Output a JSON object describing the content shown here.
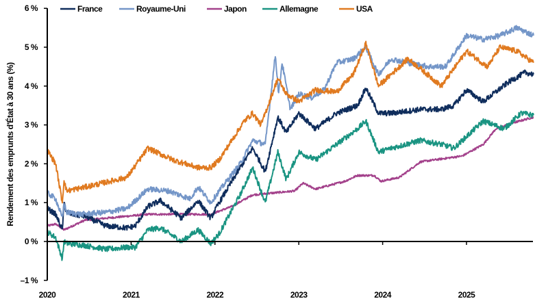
{
  "chart_data": {
    "type": "line",
    "title": "",
    "xlabel": "",
    "ylabel": "Rendement des emprunts d'État à 30 ans (%)",
    "ylim": [
      -1,
      6
    ],
    "xlim": [
      2020.0,
      2025.8
    ],
    "grid": false,
    "legend_position": "top",
    "y_ticks": [
      -1,
      0,
      1,
      2,
      3,
      4,
      5,
      6
    ],
    "y_tick_labels": [
      "–1 %",
      "0 %",
      "1 %",
      "2 %",
      "3 %",
      "4 %",
      "5 %",
      "6 %"
    ],
    "x_ticks": [
      2020,
      2021,
      2022,
      2023,
      2024,
      2025
    ],
    "x_tick_labels": [
      "2020",
      "2021",
      "2022",
      "2023",
      "2024",
      "2025"
    ],
    "series": [
      {
        "name": "France",
        "color": "#0f2d5c",
        "x": [
          2020.0,
          2020.1,
          2020.18,
          2020.2,
          2020.23,
          2020.3,
          2020.45,
          2020.7,
          2020.95,
          2021.05,
          2021.2,
          2021.35,
          2021.6,
          2021.8,
          2021.95,
          2022.05,
          2022.3,
          2022.45,
          2022.6,
          2022.75,
          2022.85,
          2023.0,
          2023.2,
          2023.45,
          2023.7,
          2023.8,
          2023.95,
          2024.1,
          2024.45,
          2024.7,
          2024.85,
          2025.0,
          2025.2,
          2025.5,
          2025.7,
          2025.8
        ],
        "values": [
          0.85,
          0.7,
          0.3,
          1.0,
          0.75,
          0.7,
          0.65,
          0.4,
          0.35,
          0.4,
          0.9,
          1.05,
          0.6,
          1.05,
          0.6,
          1.0,
          1.9,
          2.4,
          1.8,
          3.2,
          2.8,
          3.3,
          2.9,
          3.3,
          3.5,
          3.95,
          3.3,
          3.3,
          3.4,
          3.4,
          3.5,
          3.9,
          3.6,
          4.1,
          4.35,
          4.3
        ]
      },
      {
        "name": "Royaume-Uni",
        "color": "#7496c8",
        "x": [
          2020.0,
          2020.1,
          2020.18,
          2020.2,
          2020.23,
          2020.4,
          2020.7,
          2020.95,
          2021.2,
          2021.45,
          2021.7,
          2021.8,
          2021.95,
          2022.05,
          2022.3,
          2022.45,
          2022.6,
          2022.72,
          2022.76,
          2022.8,
          2022.9,
          2023.0,
          2023.15,
          2023.3,
          2023.45,
          2023.65,
          2023.8,
          2023.95,
          2024.1,
          2024.3,
          2024.55,
          2024.75,
          2025.0,
          2025.2,
          2025.4,
          2025.6,
          2025.8
        ],
        "values": [
          1.25,
          1.1,
          0.6,
          1.0,
          0.75,
          0.7,
          0.75,
          0.85,
          1.35,
          1.3,
          1.1,
          1.4,
          1.0,
          1.3,
          2.0,
          2.6,
          2.5,
          4.8,
          3.8,
          4.6,
          3.4,
          3.8,
          3.7,
          3.9,
          4.6,
          4.7,
          5.0,
          4.3,
          4.7,
          4.6,
          4.5,
          4.5,
          5.3,
          5.2,
          5.3,
          5.5,
          5.3
        ]
      },
      {
        "name": "Japon",
        "color": "#a3418b",
        "x": [
          2020.0,
          2020.1,
          2020.2,
          2020.45,
          2020.95,
          2021.2,
          2021.95,
          2022.2,
          2022.45,
          2022.95,
          2023.05,
          2023.2,
          2023.55,
          2023.7,
          2023.9,
          2023.98,
          2024.2,
          2024.45,
          2024.95,
          2025.2,
          2025.35,
          2025.55,
          2025.8
        ],
        "values": [
          0.4,
          0.45,
          0.3,
          0.55,
          0.65,
          0.7,
          0.7,
          0.9,
          1.2,
          1.3,
          1.5,
          1.35,
          1.55,
          1.7,
          1.7,
          1.55,
          1.65,
          2.05,
          2.2,
          2.5,
          2.9,
          3.05,
          3.2
        ]
      },
      {
        "name": "Allemagne",
        "color": "#1a9482",
        "x": [
          2020.0,
          2020.1,
          2020.18,
          2020.2,
          2020.23,
          2020.45,
          2020.7,
          2020.95,
          2021.05,
          2021.2,
          2021.35,
          2021.6,
          2021.8,
          2021.95,
          2022.05,
          2022.3,
          2022.45,
          2022.6,
          2022.75,
          2022.85,
          2023.0,
          2023.2,
          2023.45,
          2023.7,
          2023.8,
          2023.95,
          2024.1,
          2024.45,
          2024.7,
          2024.85,
          2025.0,
          2025.2,
          2025.45,
          2025.65,
          2025.8
        ],
        "values": [
          0.25,
          0.1,
          -0.45,
          0.0,
          -0.05,
          -0.1,
          -0.2,
          -0.15,
          -0.15,
          0.3,
          0.35,
          0.0,
          0.3,
          -0.05,
          0.2,
          1.2,
          1.9,
          1.0,
          2.3,
          1.6,
          2.3,
          2.1,
          2.5,
          2.9,
          3.1,
          2.3,
          2.4,
          2.6,
          2.5,
          2.4,
          2.7,
          3.1,
          2.9,
          3.3,
          3.25
        ]
      },
      {
        "name": "USA",
        "color": "#e07a20",
        "x": [
          2020.0,
          2020.1,
          2020.18,
          2020.2,
          2020.23,
          2020.45,
          2020.95,
          2021.2,
          2021.5,
          2021.8,
          2021.95,
          2022.05,
          2022.35,
          2022.45,
          2022.55,
          2022.75,
          2022.85,
          2023.0,
          2023.2,
          2023.45,
          2023.65,
          2023.8,
          2023.95,
          2024.05,
          2024.3,
          2024.45,
          2024.7,
          2024.9,
          2025.0,
          2025.25,
          2025.4,
          2025.6,
          2025.8
        ],
        "values": [
          2.35,
          2.0,
          1.0,
          1.6,
          1.3,
          1.4,
          1.65,
          2.4,
          2.1,
          1.9,
          1.9,
          2.1,
          3.1,
          3.3,
          3.0,
          4.2,
          3.8,
          3.6,
          3.9,
          3.85,
          4.3,
          5.1,
          4.0,
          4.2,
          4.7,
          4.45,
          4.0,
          4.6,
          4.9,
          4.5,
          5.0,
          4.9,
          4.6
        ]
      }
    ]
  },
  "legend": {
    "items": [
      {
        "label": "France",
        "color": "#0f2d5c"
      },
      {
        "label": "Royaume-Uni",
        "color": "#7496c8"
      },
      {
        "label": "Japon",
        "color": "#a3418b"
      },
      {
        "label": "Allemagne",
        "color": "#1a9482"
      },
      {
        "label": "USA",
        "color": "#e07a20"
      }
    ]
  }
}
